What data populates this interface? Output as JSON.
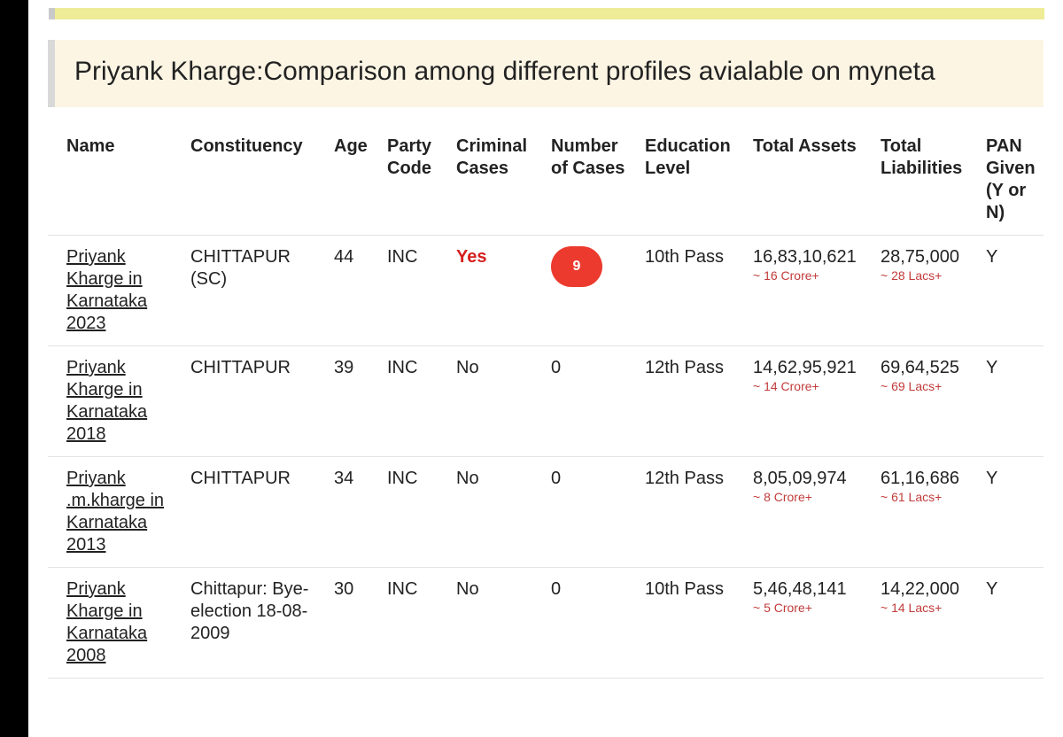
{
  "title": "Priyank Kharge:Comparison among different profiles avialable on myneta",
  "headers": {
    "name": "Name",
    "constituency": "Constituency",
    "age": "Age",
    "party": "Party Code",
    "criminal": "Criminal Cases",
    "cases": "Number of Cases",
    "education": "Education Level",
    "assets": "Total Assets",
    "liabilities": "Total Liabilities",
    "pan": "PAN Given (Y or N)"
  },
  "rows": [
    {
      "name": "Priyank Kharge in Karnataka 2023",
      "constituency": "CHITTAPUR (SC)",
      "age": "44",
      "party": "INC",
      "criminal": "Yes",
      "cases": "9",
      "education": "10th Pass",
      "assets": "16,83,10,621",
      "assets_approx": "~ 16 Crore+",
      "liabilities": "28,75,000",
      "liabilities_approx": "~ 28 Lacs+",
      "pan": "Y"
    },
    {
      "name": "Priyank Kharge in Karnataka 2018",
      "constituency": "CHITTAPUR",
      "age": "39",
      "party": "INC",
      "criminal": "No",
      "cases": "0",
      "education": "12th Pass",
      "assets": "14,62,95,921",
      "assets_approx": "~ 14 Crore+",
      "liabilities": "69,64,525",
      "liabilities_approx": "~ 69 Lacs+",
      "pan": "Y"
    },
    {
      "name": "Priyank .m.kharge in Karnataka 2013",
      "constituency": "CHITTAPUR",
      "age": "34",
      "party": "INC",
      "criminal": "No",
      "cases": "0",
      "education": "12th Pass",
      "assets": "8,05,09,974",
      "assets_approx": "~ 8 Crore+",
      "liabilities": "61,16,686",
      "liabilities_approx": "~ 61 Lacs+",
      "pan": "Y"
    },
    {
      "name": "Priyank Kharge in Karnataka 2008",
      "constituency": "Chittapur: Bye-election 18-08-2009",
      "age": "30",
      "party": "INC",
      "criminal": "No",
      "cases": "0",
      "education": "10th Pass",
      "assets": "5,46,48,141",
      "assets_approx": "~ 5 Crore+",
      "liabilities": "14,22,000",
      "liabilities_approx": "~ 14 Lacs+",
      "pan": "Y"
    }
  ]
}
